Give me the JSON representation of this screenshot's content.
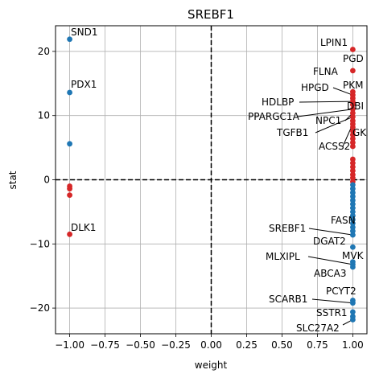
{
  "chart_data": {
    "type": "scatter",
    "title": "SREBF1",
    "xlabel": "weight",
    "ylabel": "stat",
    "xlim": [
      -1.1,
      1.1
    ],
    "ylim": [
      -24,
      24
    ],
    "xticks": [
      -1.0,
      -0.75,
      -0.5,
      -0.25,
      0.0,
      0.25,
      0.5,
      0.75,
      1.0
    ],
    "xtick_labels": [
      "−1.00",
      "−0.75",
      "−0.50",
      "−0.25",
      "0.00",
      "0.25",
      "0.50",
      "0.75",
      "1.00"
    ],
    "yticks": [
      -20,
      -10,
      0,
      10,
      20
    ],
    "ytick_labels": [
      "−20",
      "−10",
      "0",
      "10",
      "20"
    ],
    "grid": true,
    "reference_lines": {
      "x": 0,
      "y": 0,
      "style": "dashed"
    },
    "colors": {
      "positive_effect": "#d62728",
      "negative_effect": "#1f77b4"
    },
    "points": [
      {
        "x": -1.0,
        "y": 21.9,
        "color": "#1f77b4",
        "label": "SND1"
      },
      {
        "x": -1.0,
        "y": 13.6,
        "color": "#1f77b4",
        "label": "PDX1"
      },
      {
        "x": -1.0,
        "y": 5.6,
        "color": "#1f77b4",
        "label": ""
      },
      {
        "x": -1.0,
        "y": -1.0,
        "color": "#d62728",
        "label": ""
      },
      {
        "x": -1.0,
        "y": -1.4,
        "color": "#d62728",
        "label": ""
      },
      {
        "x": -1.0,
        "y": -2.4,
        "color": "#d62728",
        "label": ""
      },
      {
        "x": -1.0,
        "y": -8.5,
        "color": "#d62728",
        "label": "DLK1"
      },
      {
        "x": 1.0,
        "y": 20.3,
        "color": "#d62728",
        "label": "LPIN1"
      },
      {
        "x": 1.0,
        "y": 17.0,
        "color": "#d62728",
        "label": "PGD"
      },
      {
        "x": 1.0,
        "y": 13.7,
        "color": "#d62728",
        "label": "FLNA"
      },
      {
        "x": 1.0,
        "y": 13.2,
        "color": "#d62728",
        "label": "HPGD"
      },
      {
        "x": 1.0,
        "y": 12.7,
        "color": "#d62728",
        "label": "PKM"
      },
      {
        "x": 1.0,
        "y": 12.2,
        "color": "#d62728",
        "label": "HDLBP"
      },
      {
        "x": 1.0,
        "y": 11.7,
        "color": "#d62728",
        "label": "DBI"
      },
      {
        "x": 1.0,
        "y": 11.0,
        "color": "#d62728",
        "label": "PPARGC1A"
      },
      {
        "x": 1.0,
        "y": 10.4,
        "color": "#d62728",
        "label": "NPC1"
      },
      {
        "x": 1.0,
        "y": 9.8,
        "color": "#d62728",
        "label": "TGFB1"
      },
      {
        "x": 1.0,
        "y": 9.2,
        "color": "#d62728",
        "label": "GK"
      },
      {
        "x": 1.0,
        "y": 8.7,
        "color": "#d62728",
        "label": "ACSS2"
      },
      {
        "x": 1.0,
        "y": 8.2,
        "color": "#d62728",
        "label": ""
      },
      {
        "x": 1.0,
        "y": 7.6,
        "color": "#d62728",
        "label": ""
      },
      {
        "x": 1.0,
        "y": 7.0,
        "color": "#d62728",
        "label": ""
      },
      {
        "x": 1.0,
        "y": 6.4,
        "color": "#d62728",
        "label": ""
      },
      {
        "x": 1.0,
        "y": 5.8,
        "color": "#d62728",
        "label": ""
      },
      {
        "x": 1.0,
        "y": 5.2,
        "color": "#d62728",
        "label": ""
      },
      {
        "x": 1.0,
        "y": 3.2,
        "color": "#d62728",
        "label": ""
      },
      {
        "x": 1.0,
        "y": 2.6,
        "color": "#d62728",
        "label": ""
      },
      {
        "x": 1.0,
        "y": 2.0,
        "color": "#d62728",
        "label": ""
      },
      {
        "x": 1.0,
        "y": 1.4,
        "color": "#d62728",
        "label": ""
      },
      {
        "x": 1.0,
        "y": 0.8,
        "color": "#d62728",
        "label": ""
      },
      {
        "x": 1.0,
        "y": 0.3,
        "color": "#d62728",
        "label": ""
      },
      {
        "x": 1.0,
        "y": -0.3,
        "color": "#d62728",
        "label": ""
      },
      {
        "x": 1.0,
        "y": -0.8,
        "color": "#1f77b4",
        "label": ""
      },
      {
        "x": 1.0,
        "y": -1.4,
        "color": "#1f77b4",
        "label": ""
      },
      {
        "x": 1.0,
        "y": -2.0,
        "color": "#1f77b4",
        "label": ""
      },
      {
        "x": 1.0,
        "y": -2.6,
        "color": "#1f77b4",
        "label": ""
      },
      {
        "x": 1.0,
        "y": -3.2,
        "color": "#1f77b4",
        "label": ""
      },
      {
        "x": 1.0,
        "y": -3.8,
        "color": "#1f77b4",
        "label": ""
      },
      {
        "x": 1.0,
        "y": -4.4,
        "color": "#1f77b4",
        "label": ""
      },
      {
        "x": 1.0,
        "y": -5.0,
        "color": "#1f77b4",
        "label": ""
      },
      {
        "x": 1.0,
        "y": -5.6,
        "color": "#1f77b4",
        "label": ""
      },
      {
        "x": 1.0,
        "y": -6.2,
        "color": "#1f77b4",
        "label": ""
      },
      {
        "x": 1.0,
        "y": -6.8,
        "color": "#1f77b4",
        "label": ""
      },
      {
        "x": 1.0,
        "y": -7.4,
        "color": "#1f77b4",
        "label": ""
      },
      {
        "x": 1.0,
        "y": -8.0,
        "color": "#1f77b4",
        "label": "FASN"
      },
      {
        "x": 1.0,
        "y": -8.6,
        "color": "#1f77b4",
        "label": "SREBF1"
      },
      {
        "x": 1.0,
        "y": -10.5,
        "color": "#1f77b4",
        "label": "DGAT2"
      },
      {
        "x": 1.0,
        "y": -12.8,
        "color": "#1f77b4",
        "label": "MVK"
      },
      {
        "x": 1.0,
        "y": -13.2,
        "color": "#1f77b4",
        "label": "MLXIPL"
      },
      {
        "x": 1.0,
        "y": -13.6,
        "color": "#1f77b4",
        "label": "ABCA3"
      },
      {
        "x": 1.0,
        "y": -18.8,
        "color": "#1f77b4",
        "label": "PCYT2"
      },
      {
        "x": 1.0,
        "y": -19.2,
        "color": "#1f77b4",
        "label": "SCARB1"
      },
      {
        "x": 1.0,
        "y": -20.6,
        "color": "#1f77b4",
        "label": ""
      },
      {
        "x": 1.0,
        "y": -21.3,
        "color": "#1f77b4",
        "label": "SSTR1"
      },
      {
        "x": 1.0,
        "y": -21.8,
        "color": "#1f77b4",
        "label": "SLC27A2"
      }
    ]
  }
}
